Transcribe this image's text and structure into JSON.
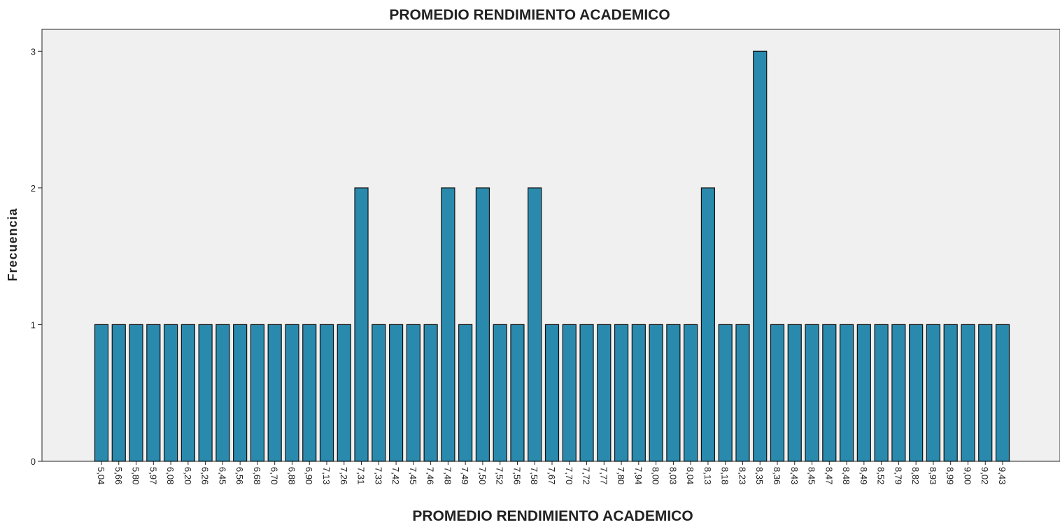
{
  "chart_data": {
    "type": "bar",
    "title": "PROMEDIO RENDIMIENTO ACADEMICO",
    "x_label": "PROMEDIO RENDIMIENTO ACADEMICO",
    "y_label": "Frecuencia",
    "categories": [
      "5,04",
      "5,66",
      "5,80",
      "5,97",
      "6,08",
      "6,20",
      "6,26",
      "6,45",
      "6,56",
      "6,68",
      "6,70",
      "6,88",
      "6,90",
      "7,13",
      "7,26",
      "7,31",
      "7,33",
      "7,42",
      "7,45",
      "7,46",
      "7,48",
      "7,49",
      "7,50",
      "7,52",
      "7,56",
      "7,58",
      "7,67",
      "7,70",
      "7,72",
      "7,77",
      "7,80",
      "7,94",
      "8,00",
      "8,03",
      "8,04",
      "8,13",
      "8,18",
      "8,23",
      "8,35",
      "8,36",
      "8,43",
      "8,45",
      "8,47",
      "8,48",
      "8,49",
      "8,52",
      "8,79",
      "8,82",
      "8,93",
      "8,99",
      "9,00",
      "9,02",
      "9,43"
    ],
    "values": [
      1,
      1,
      1,
      1,
      1,
      1,
      1,
      1,
      1,
      1,
      1,
      1,
      1,
      1,
      1,
      2,
      1,
      1,
      1,
      1,
      2,
      1,
      2,
      1,
      1,
      2,
      1,
      1,
      1,
      1,
      1,
      1,
      1,
      1,
      1,
      2,
      1,
      1,
      3,
      1,
      1,
      1,
      1,
      1,
      1,
      1,
      1,
      1,
      1,
      1,
      1,
      1,
      1
    ],
    "color": "#2a8aad",
    "ylim": [
      0,
      3.16
    ],
    "yticks": [
      0,
      1,
      2,
      3
    ],
    "grid": false
  }
}
